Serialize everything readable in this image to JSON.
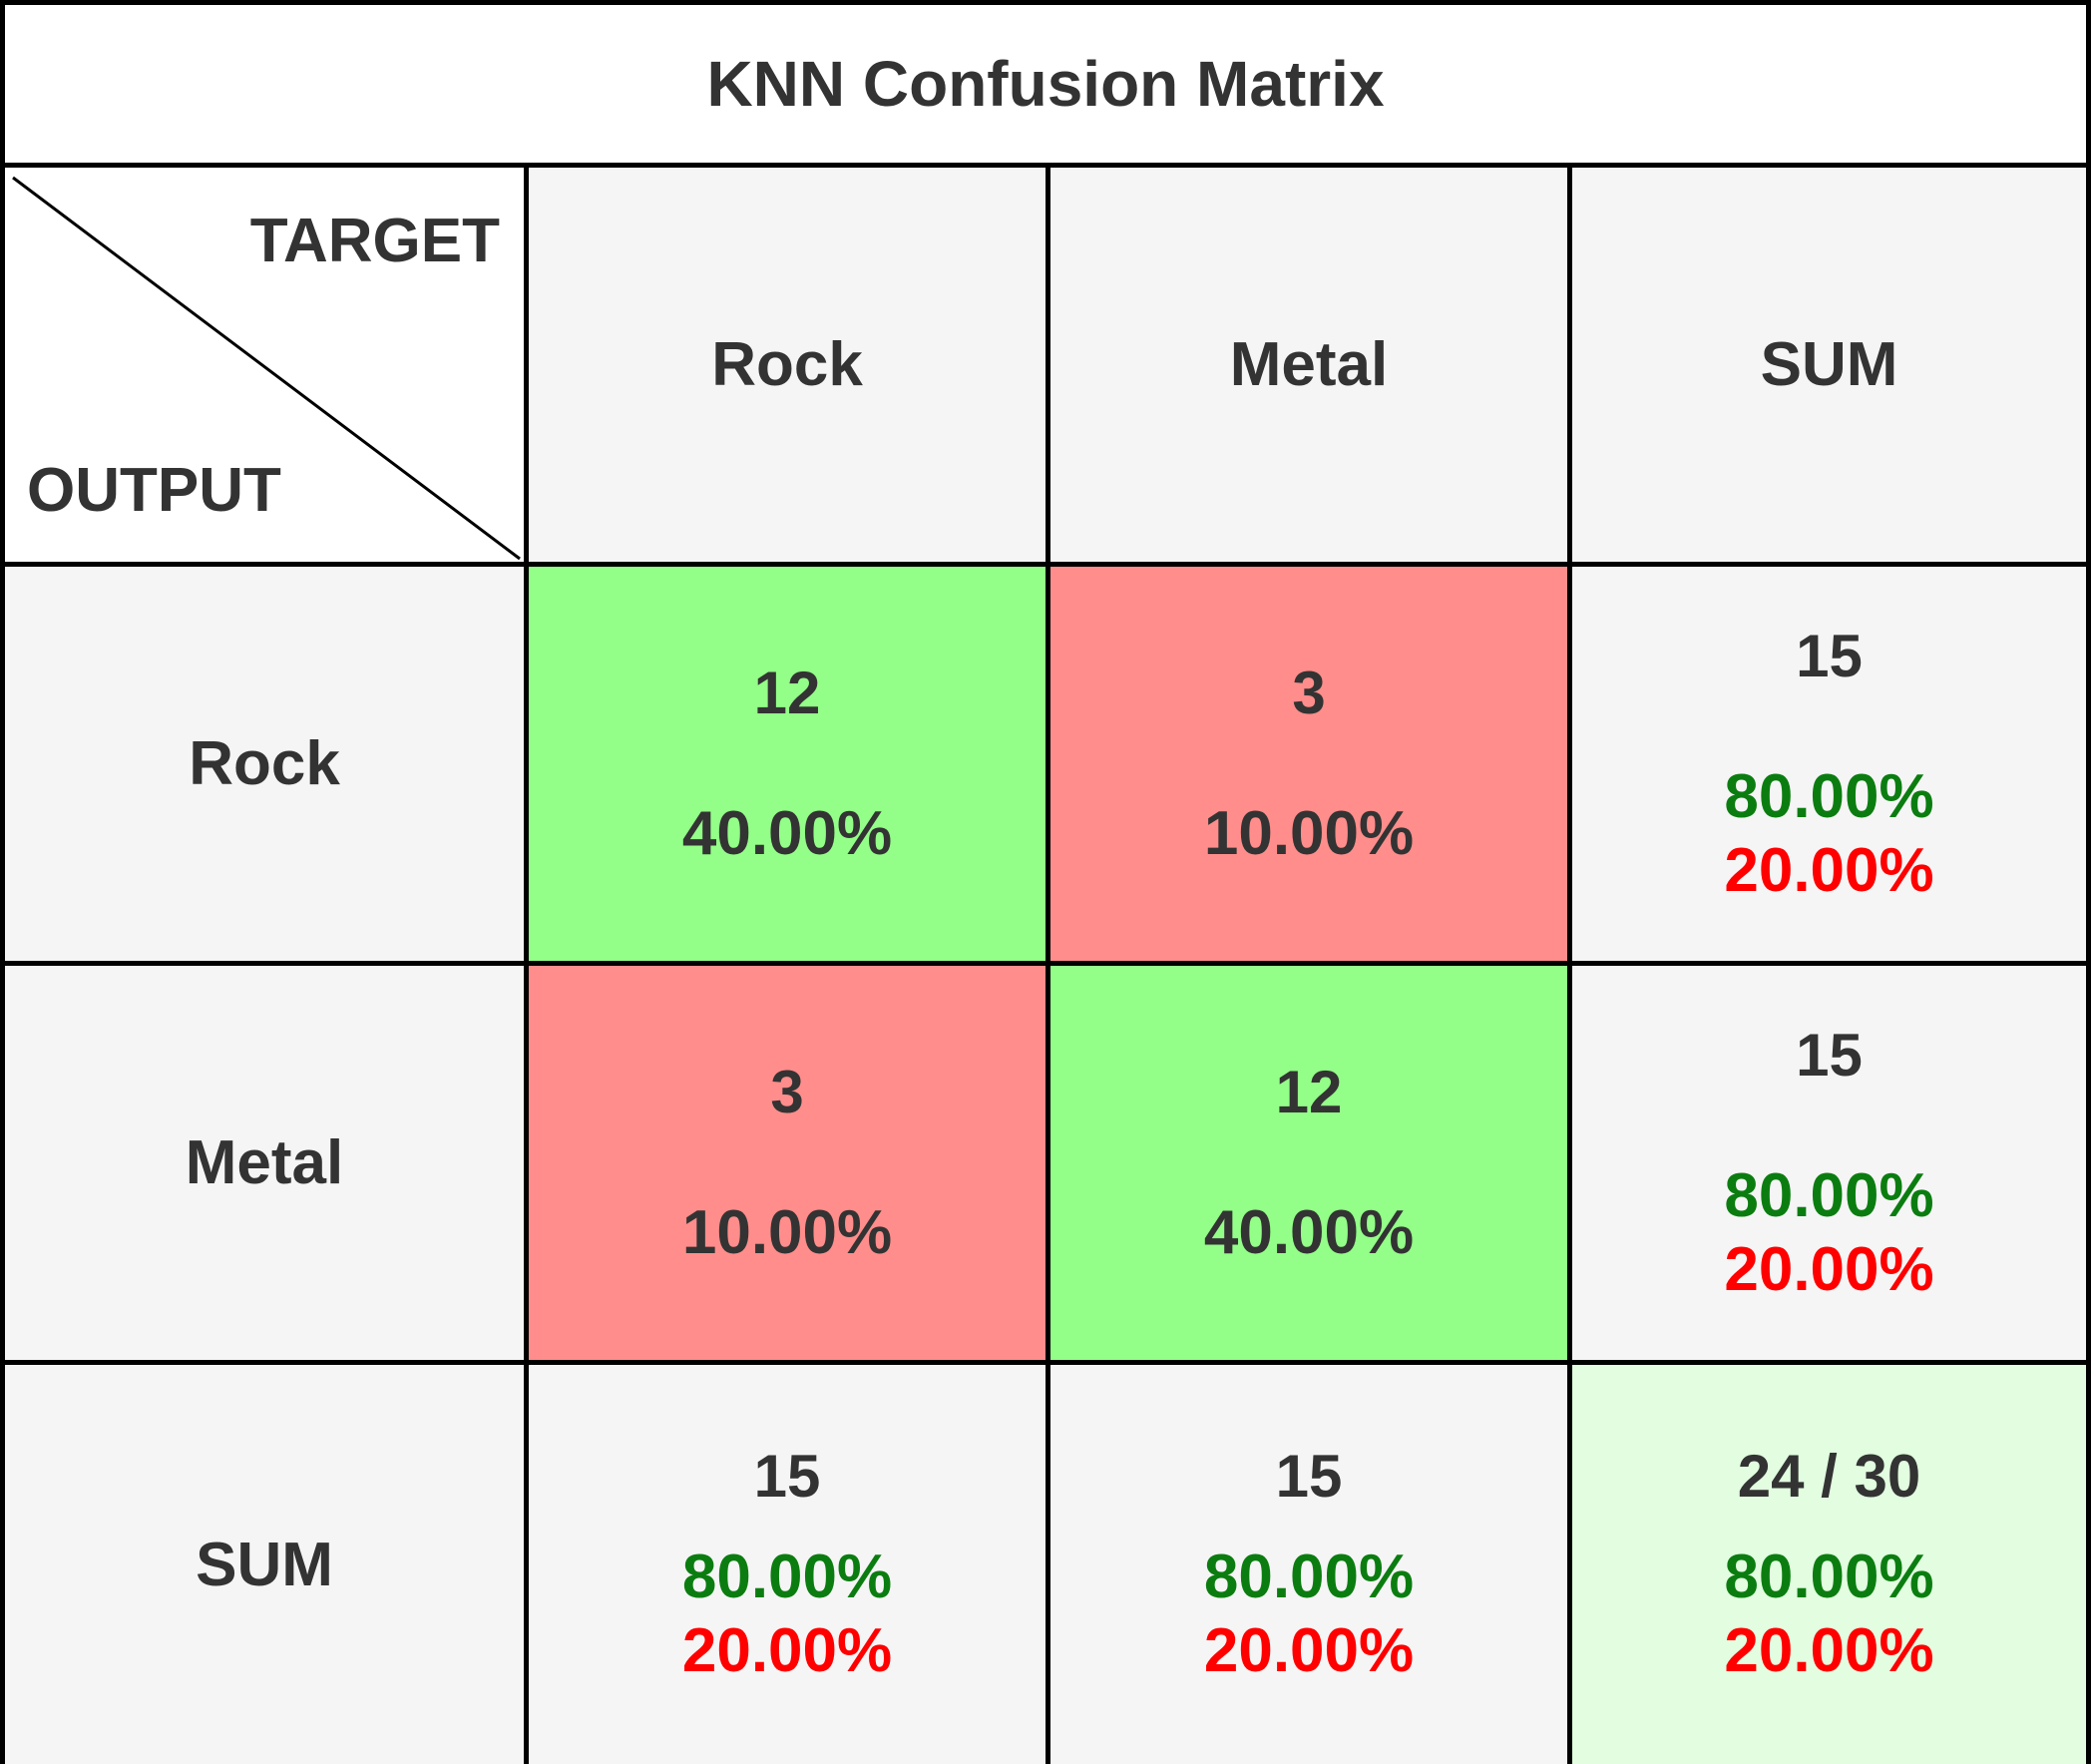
{
  "chart_data": {
    "type": "table",
    "title": "KNN Confusion Matrix",
    "corner": {
      "column_axis_label": "TARGET",
      "row_axis_label": "OUTPUT"
    },
    "columns": [
      "Rock",
      "Metal",
      "SUM"
    ],
    "rows": [
      {
        "label": "Rock",
        "cells": [
          {
            "count": "12",
            "percent": "40.00%"
          },
          {
            "count": "3",
            "percent": "10.00%"
          }
        ],
        "sum": {
          "count": "15",
          "correct_percent": "80.00%",
          "error_percent": "20.00%"
        }
      },
      {
        "label": "Metal",
        "cells": [
          {
            "count": "3",
            "percent": "10.00%"
          },
          {
            "count": "12",
            "percent": "40.00%"
          }
        ],
        "sum": {
          "count": "15",
          "correct_percent": "80.00%",
          "error_percent": "20.00%"
        }
      }
    ],
    "sum_row": {
      "label": "SUM",
      "cells": [
        {
          "count": "15",
          "correct_percent": "80.00%",
          "error_percent": "20.00%"
        },
        {
          "count": "15",
          "correct_percent": "80.00%",
          "error_percent": "20.00%"
        }
      ],
      "total": {
        "count": "24 / 30",
        "correct_percent": "80.00%",
        "error_percent": "20.00%"
      }
    },
    "colors": {
      "correct_cell": "#93ff88",
      "error_cell": "#ff8d8b",
      "header_cell": "#f5f5f5",
      "total_cell": "#e2fde0",
      "correct_text": "#0b7d10",
      "error_text": "#ff0000"
    }
  }
}
